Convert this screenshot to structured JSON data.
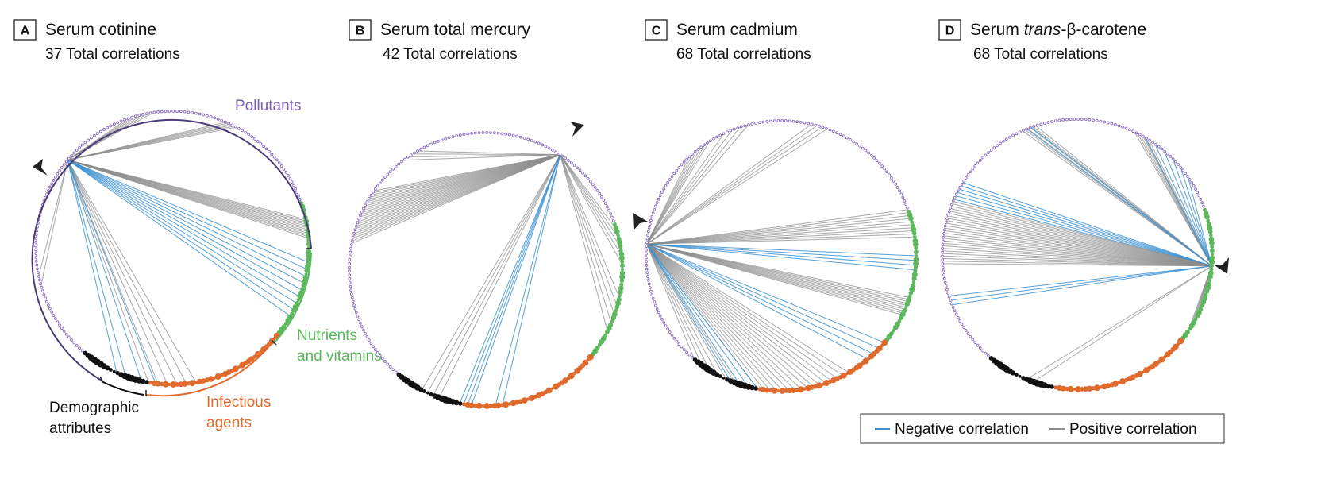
{
  "panels": [
    {
      "letter": "A",
      "title": "Serum cotinine",
      "subtitle": "37 Total correlations"
    },
    {
      "letter": "B",
      "title": "Serum total mercury",
      "subtitle": "42 Total correlations"
    },
    {
      "letter": "C",
      "title": "Serum cadmium",
      "subtitle": "68 Total correlations"
    },
    {
      "letter": "D",
      "title_prefix": "Serum ",
      "title_italic": "trans",
      "title_suffix": "-β-carotene",
      "subtitle": "68 Total correlations"
    }
  ],
  "groups": {
    "pollutants": "Pollutants",
    "nutrients_line1": "Nutrients",
    "nutrients_line2": "and vitamins",
    "infectious_line1": "Infectious",
    "infectious_line2": "agents",
    "demographic_line1": "Demographic",
    "demographic_line2": "attributes"
  },
  "legend": {
    "negative": "Negative correlation",
    "positive": "Positive correlation"
  },
  "colors": {
    "pollutants": "#8b6fc0",
    "nutrients": "#5cb85c",
    "infectious": "#e06a2c",
    "demographic": "#111111",
    "negative": "#3a8fd0",
    "positive": "#8c8c8c",
    "ring": "#4b3a7a"
  }
}
